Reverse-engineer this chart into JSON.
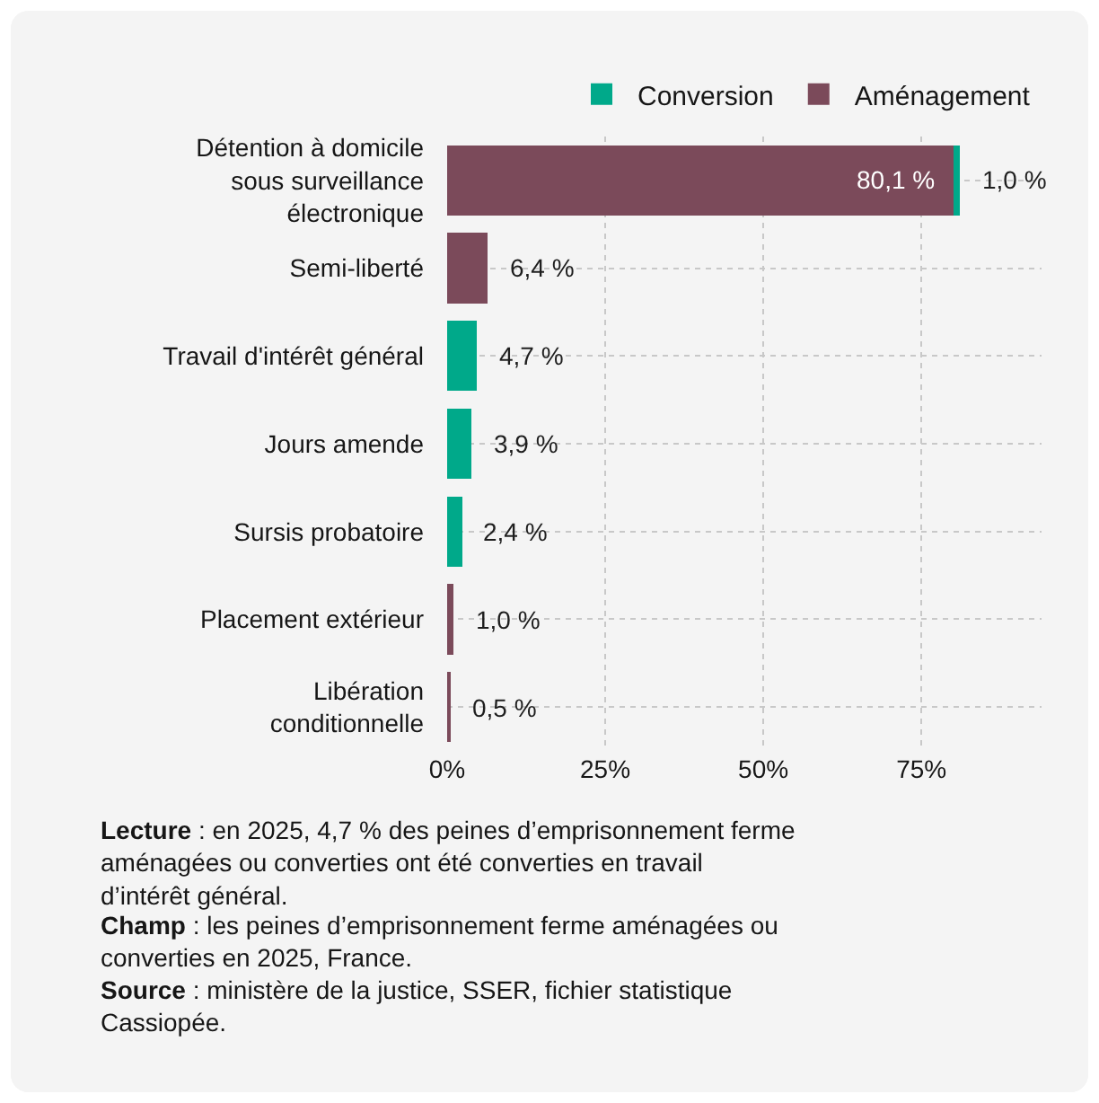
{
  "chart_data": {
    "type": "bar",
    "orientation": "horizontal",
    "stacked": true,
    "categories": [
      "Détention à domicile\nsous surveillance\nélectronique",
      "Semi-liberté",
      "Travail d'intérêt général",
      "Jours amende",
      "Sursis probatoire",
      "Placement extérieur",
      "Libération\nconditionnelle"
    ],
    "series": [
      {
        "name": "Aménagement",
        "color": "#7b4a5a",
        "values": [
          80.1,
          6.4,
          null,
          null,
          null,
          1.0,
          0.5
        ],
        "value_labels": [
          "80,1 %",
          "6,4 %",
          null,
          null,
          null,
          "1,0 %",
          "0,5 %"
        ]
      },
      {
        "name": "Conversion",
        "color": "#00a98a",
        "values": [
          1.0,
          null,
          4.7,
          3.9,
          2.4,
          null,
          null
        ],
        "value_labels": [
          "1,0 %",
          null,
          "4,7 %",
          "3,9 %",
          "2,4 %",
          null,
          null
        ]
      }
    ],
    "xlim": [
      0,
      94
    ],
    "xticks": [
      {
        "value": 0,
        "label": "0%"
      },
      {
        "value": 25,
        "label": "25%"
      },
      {
        "value": 50,
        "label": "50%"
      },
      {
        "value": 75,
        "label": "75%"
      }
    ],
    "grid": true,
    "legend": "top right",
    "annotations": [
      "Lecture : en 2025, 4,7 % des peines d’emprisonnement ferme aménagées ou converties ont été converties en travail d’intérêt général.",
      "Champ : les peines d’emprisonnement ferme aménagées ou converties en 2025, France.",
      "Source : ministère de la justice, SSER, fichier statistique Cassiopée."
    ]
  }
}
